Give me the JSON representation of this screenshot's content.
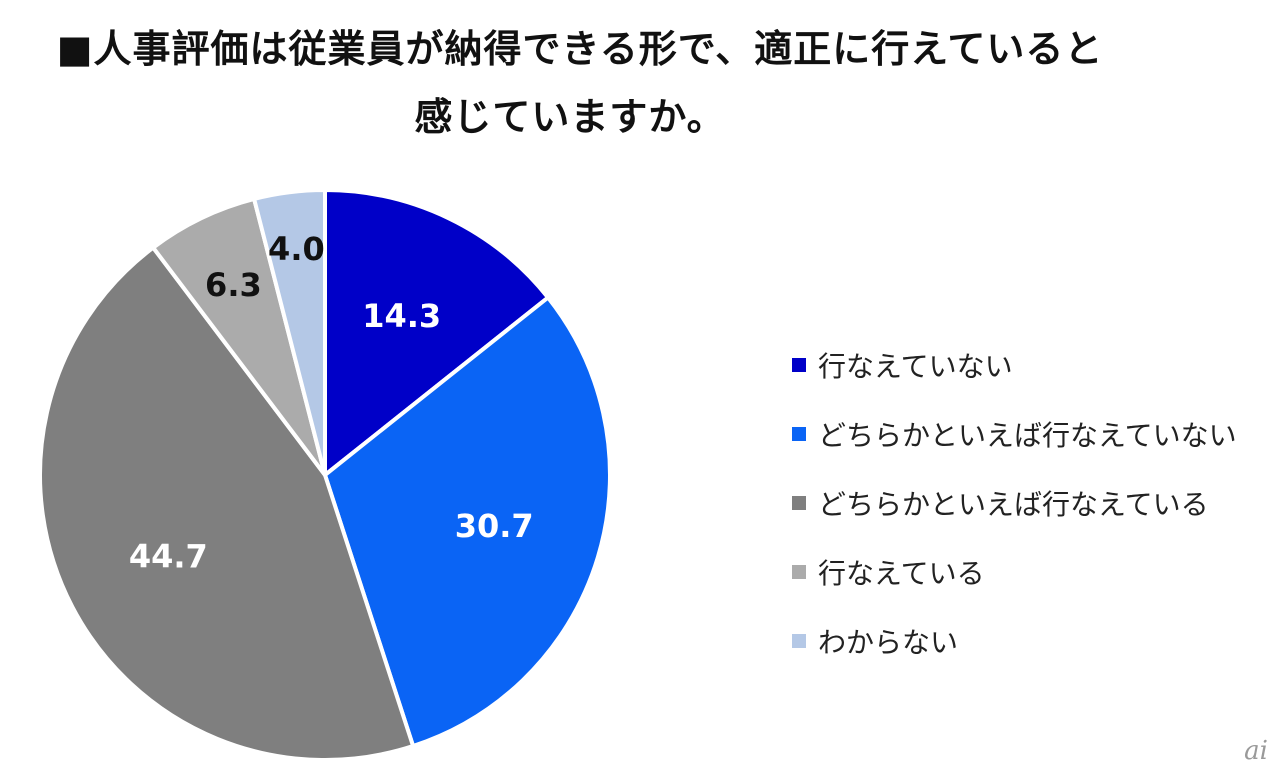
{
  "title": {
    "line1": "■人事評価は従業員が納得できる形で、適正に行えていると",
    "line2": "感じていますか。"
  },
  "chart_data": {
    "type": "pie",
    "categories": [
      "行なえていない",
      "どちらかといえば行なえていない",
      "どちらかといえば行なえている",
      "行なえている",
      "わからない"
    ],
    "values": [
      14.3,
      30.7,
      44.7,
      6.3,
      4.0
    ],
    "value_labels": [
      "14.3",
      "30.7",
      "44.7",
      "6.3",
      "4.0"
    ],
    "colors": [
      "#0000c8",
      "#0a64f5",
      "#7f7f7f",
      "#ababab",
      "#b4c8e6"
    ],
    "label_colors": [
      "#ffffff",
      "#ffffff",
      "#ffffff",
      "#111111",
      "#111111"
    ],
    "start_angle": "12 o'clock",
    "direction": "clockwise",
    "legend_position": "right"
  },
  "watermark": "ai"
}
